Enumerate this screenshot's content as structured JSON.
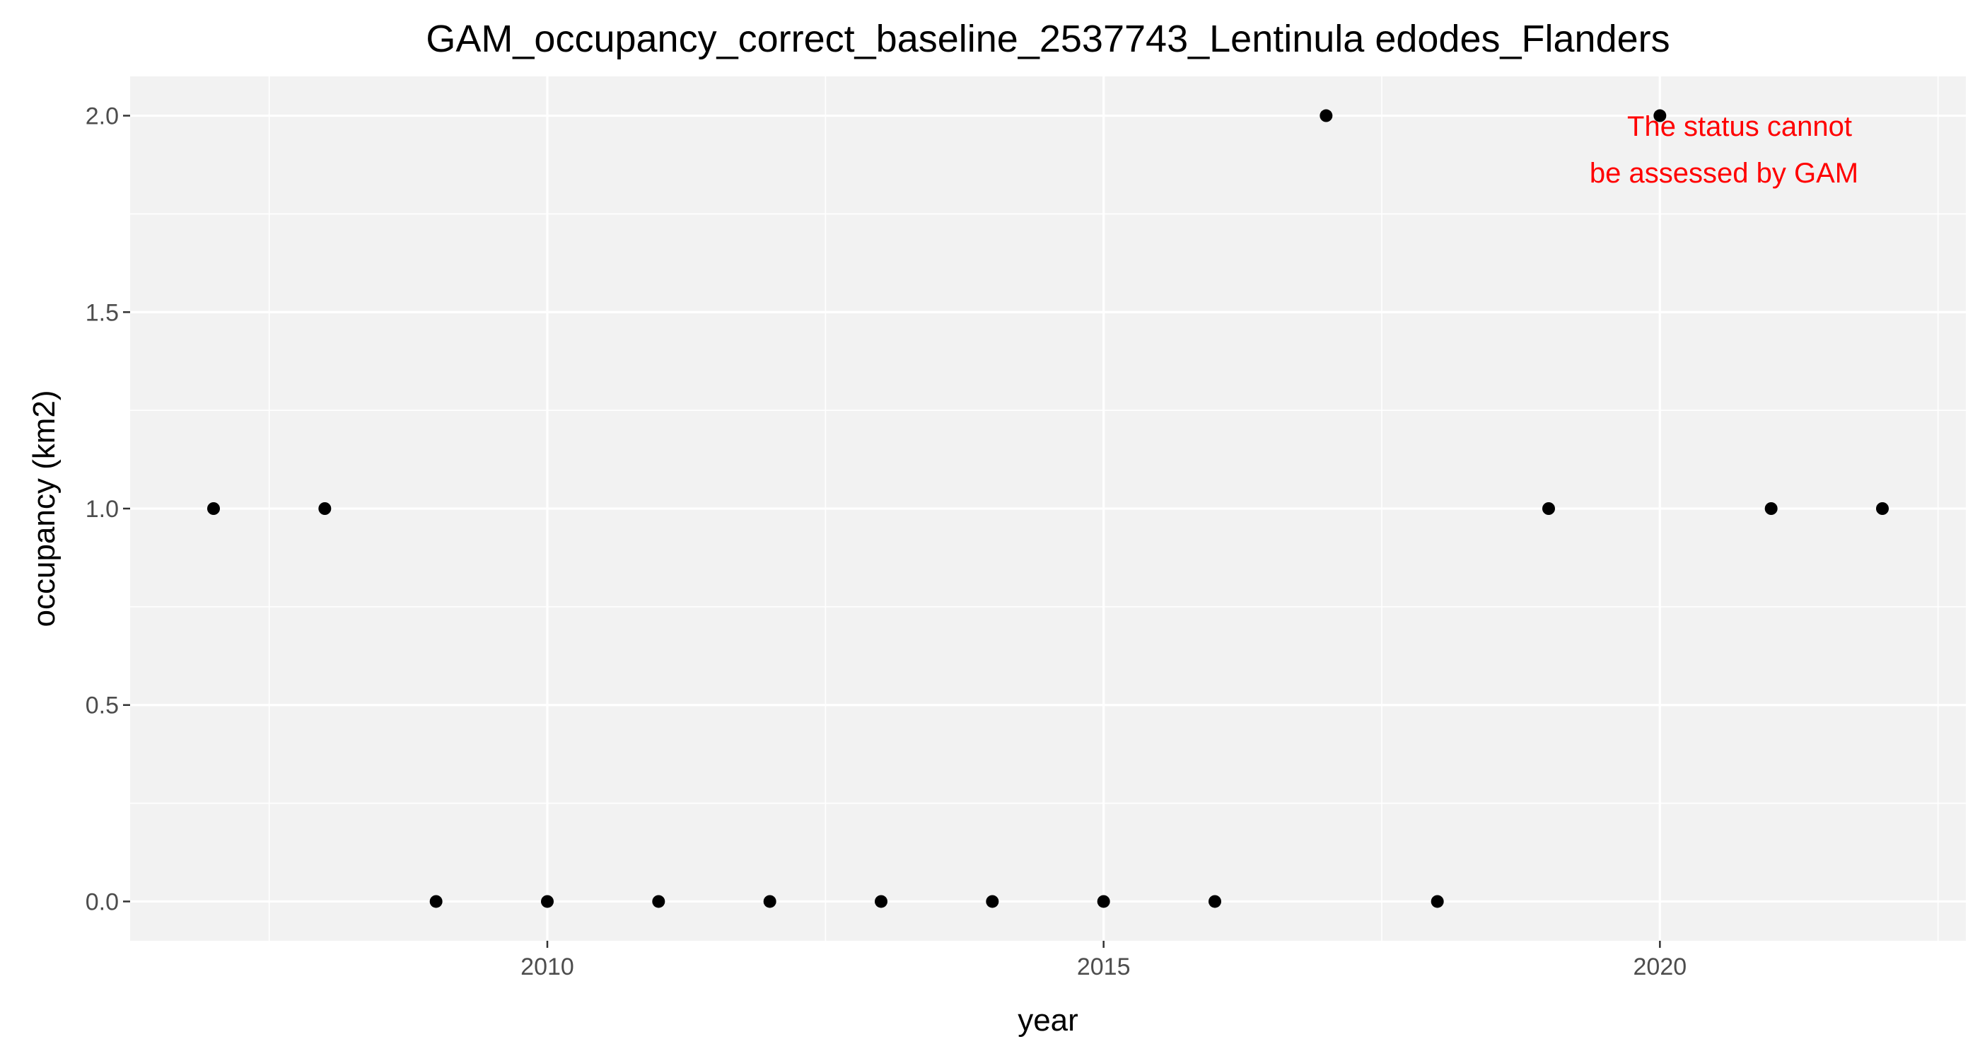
{
  "chart_data": {
    "type": "scatter",
    "title": "GAM_occupancy_correct_baseline_2537743_Lentinula edodes_Flanders",
    "xlabel": "year",
    "ylabel": "occupancy (km2)",
    "x": [
      2007,
      2008,
      2009,
      2010,
      2011,
      2012,
      2013,
      2014,
      2015,
      2016,
      2017,
      2018,
      2019,
      2020,
      2021,
      2022
    ],
    "y": [
      1,
      1,
      0,
      0,
      0,
      0,
      0,
      0,
      0,
      0,
      2,
      0,
      1,
      2,
      1,
      1
    ],
    "xlim": [
      2006.25,
      2022.75
    ],
    "ylim": [
      -0.1,
      2.1
    ],
    "x_ticks": [
      2010,
      2015,
      2020
    ],
    "x_tick_labels": [
      "2010",
      "2015",
      "2020"
    ],
    "y_ticks": [
      0.0,
      0.5,
      1.0,
      1.5,
      2.0
    ],
    "y_tick_labels": [
      "0.0",
      "0.5",
      "1.0",
      "1.5",
      "2.0"
    ],
    "grid": true,
    "annotation": {
      "lines": [
        "The status cannot",
        "be assessed by GAM"
      ],
      "color": "#FF0000"
    },
    "colors": {
      "panel_background": "#F2F2F2",
      "grid_major": "#FFFFFF",
      "point": "#000000"
    }
  }
}
